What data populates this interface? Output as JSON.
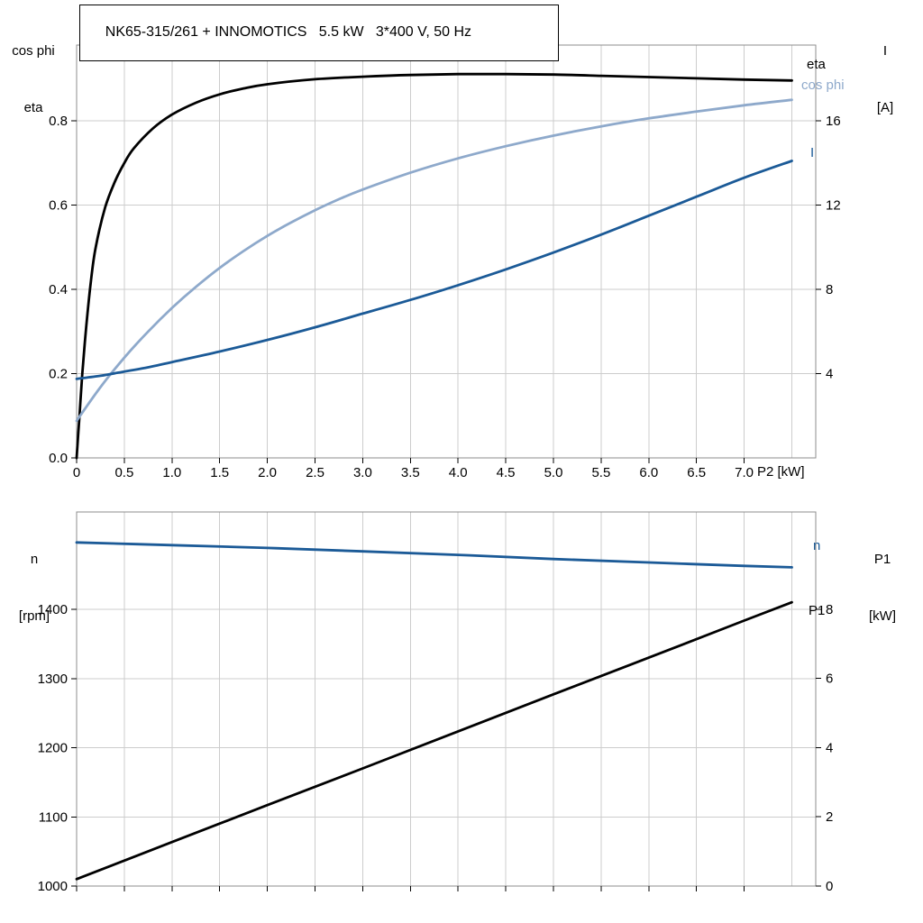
{
  "colors": {
    "black": "#000000",
    "dark_blue": "#1b5a97",
    "light_blue": "#8ea9cb",
    "grid": "#cccccc",
    "border": "#8c8c8c",
    "tick": "#000000"
  },
  "chart_data": [
    {
      "name": "motor-performance",
      "type": "line",
      "title": "NK65-315/261 + INNOMOTICS   5.5 kW   3*400 V, 50 Hz",
      "xlabel": "P2 [kW]",
      "xlim": [
        0,
        7.75
      ],
      "left_axis_title": [
        "cos phi",
        "eta"
      ],
      "right_axis_title": [
        "I",
        "[A]"
      ],
      "x_ticks": {
        "values": [
          0,
          0.5,
          1,
          1.5,
          2,
          2.5,
          3,
          3.5,
          4,
          4.5,
          5,
          5.5,
          6,
          6.5,
          7
        ],
        "labels": [
          "0",
          "0.5",
          "1.0",
          "1.5",
          "2.0",
          "2.5",
          "3.0",
          "3.5",
          "4.0",
          "4.5",
          "5.0",
          "5.5",
          "6.0",
          "6.5",
          "7.0"
        ]
      },
      "x_grid": [
        0.5,
        1,
        1.5,
        2,
        2.5,
        3,
        3.5,
        4,
        4.5,
        5,
        5.5,
        6,
        6.5,
        7,
        7.5
      ],
      "left_axis": {
        "label": "cos phi / eta",
        "lim": [
          0,
          0.98
        ],
        "ticks": {
          "values": [
            0,
            0.2,
            0.4,
            0.6,
            0.8
          ],
          "labels": [
            "0.0",
            "0.2",
            "0.4",
            "0.6",
            "0.8"
          ]
        }
      },
      "right_axis": {
        "label": "I [A]",
        "lim": [
          0,
          19.6
        ],
        "ticks": {
          "values": [
            4,
            8,
            12,
            16
          ],
          "labels": [
            "4",
            "8",
            "12",
            "16"
          ]
        }
      },
      "series": [
        {
          "name": "eta",
          "axis": "left",
          "color_key": "black",
          "points": [
            [
              0,
              0
            ],
            [
              0.03,
              0.1
            ],
            [
              0.06,
              0.2
            ],
            [
              0.1,
              0.31
            ],
            [
              0.15,
              0.42
            ],
            [
              0.2,
              0.5
            ],
            [
              0.3,
              0.595
            ],
            [
              0.4,
              0.655
            ],
            [
              0.5,
              0.7
            ],
            [
              0.6,
              0.735
            ],
            [
              0.8,
              0.782
            ],
            [
              1,
              0.815
            ],
            [
              1.25,
              0.843
            ],
            [
              1.5,
              0.863
            ],
            [
              1.75,
              0.877
            ],
            [
              2,
              0.887
            ],
            [
              2.5,
              0.899
            ],
            [
              3,
              0.905
            ],
            [
              3.5,
              0.909
            ],
            [
              4,
              0.911
            ],
            [
              4.5,
              0.911
            ],
            [
              5,
              0.91
            ],
            [
              5.5,
              0.907
            ],
            [
              6,
              0.904
            ],
            [
              6.5,
              0.901
            ],
            [
              7,
              0.898
            ],
            [
              7.5,
              0.896
            ]
          ]
        },
        {
          "name": "cos phi",
          "axis": "left",
          "color_key": "light_blue",
          "points": [
            [
              0,
              0.088
            ],
            [
              0.25,
              0.168
            ],
            [
              0.5,
              0.238
            ],
            [
              0.75,
              0.3
            ],
            [
              1,
              0.356
            ],
            [
              1.25,
              0.406
            ],
            [
              1.5,
              0.451
            ],
            [
              1.75,
              0.491
            ],
            [
              2,
              0.527
            ],
            [
              2.25,
              0.559
            ],
            [
              2.5,
              0.588
            ],
            [
              2.75,
              0.614
            ],
            [
              3,
              0.637
            ],
            [
              3.5,
              0.677
            ],
            [
              4,
              0.711
            ],
            [
              4.5,
              0.74
            ],
            [
              5,
              0.765
            ],
            [
              5.5,
              0.787
            ],
            [
              6,
              0.806
            ],
            [
              6.5,
              0.822
            ],
            [
              7,
              0.837
            ],
            [
              7.5,
              0.85
            ]
          ]
        },
        {
          "name": "I",
          "axis": "right",
          "color_key": "dark_blue",
          "points": [
            [
              0,
              3.75
            ],
            [
              0.25,
              3.9
            ],
            [
              0.5,
              4.1
            ],
            [
              0.75,
              4.3
            ],
            [
              1,
              4.55
            ],
            [
              1.5,
              5.05
            ],
            [
              2,
              5.6
            ],
            [
              2.5,
              6.2
            ],
            [
              3,
              6.85
            ],
            [
              3.5,
              7.5
            ],
            [
              4,
              8.2
            ],
            [
              4.5,
              8.95
            ],
            [
              5,
              9.75
            ],
            [
              5.5,
              10.6
            ],
            [
              6,
              11.5
            ],
            [
              6.5,
              12.4
            ],
            [
              7,
              13.3
            ],
            [
              7.5,
              14.1
            ]
          ]
        }
      ]
    },
    {
      "name": "speed-power",
      "type": "line",
      "title": "",
      "xlabel": "",
      "xlim": [
        0,
        7.75
      ],
      "left_axis_title": [
        "n",
        "[rpm]"
      ],
      "right_axis_title": [
        "P1",
        "[kW]"
      ],
      "x_ticks": {
        "values": [
          0,
          0.5,
          1,
          1.5,
          2,
          2.5,
          3,
          3.5,
          4,
          4.5,
          5,
          5.5,
          6,
          6.5,
          7
        ],
        "labels": null
      },
      "x_grid": [
        0.5,
        1,
        1.5,
        2,
        2.5,
        3,
        3.5,
        4,
        4.5,
        5,
        5.5,
        6,
        6.5,
        7,
        7.5
      ],
      "left_axis": {
        "label": "n [rpm]",
        "lim": [
          1000,
          1541
        ],
        "ticks": {
          "values": [
            1000,
            1100,
            1200,
            1300,
            1400
          ],
          "labels": [
            "1000",
            "1100",
            "1200",
            "1300",
            "1400"
          ]
        }
      },
      "right_axis": {
        "label": "P1 [kW]",
        "lim": [
          0,
          10.81
        ],
        "ticks": {
          "values": [
            0,
            2,
            4,
            6,
            8
          ],
          "labels": [
            "0",
            "2",
            "4",
            "6",
            "8"
          ]
        }
      },
      "series": [
        {
          "name": "n",
          "axis": "left",
          "color_key": "dark_blue",
          "points": [
            [
              0,
              1497
            ],
            [
              1,
              1493
            ],
            [
              2,
              1489
            ],
            [
              3,
              1484
            ],
            [
              4,
              1479
            ],
            [
              5,
              1473
            ],
            [
              6,
              1468
            ],
            [
              7,
              1463
            ],
            [
              7.5,
              1461
            ]
          ]
        },
        {
          "name": "P1",
          "axis": "right",
          "color_key": "black",
          "points": [
            [
              0,
              0.2
            ],
            [
              1,
              1.27
            ],
            [
              2,
              2.34
            ],
            [
              3,
              3.4
            ],
            [
              4,
              4.47
            ],
            [
              5,
              5.54
            ],
            [
              6,
              6.6
            ],
            [
              7,
              7.67
            ],
            [
              7.5,
              8.2
            ]
          ]
        }
      ]
    }
  ]
}
